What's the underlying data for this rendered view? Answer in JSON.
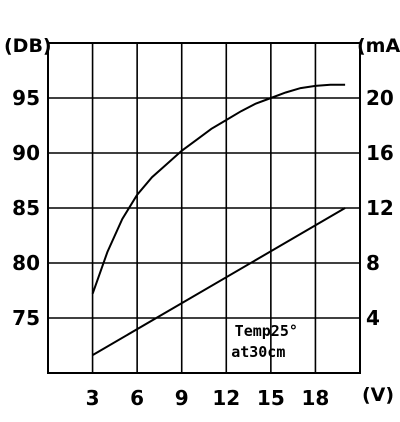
{
  "chart_data": {
    "type": "line",
    "x_unit": "(V)",
    "left_unit": "(DB)",
    "right_unit": "(mA)",
    "x_ticks": [
      "3",
      "6",
      "9",
      "12",
      "15",
      "18"
    ],
    "left_ticks": [
      "75",
      "80",
      "85",
      "90",
      "95"
    ],
    "right_ticks": [
      "4",
      "8",
      "12",
      "16",
      "20"
    ],
    "xlim": [
      0,
      21
    ],
    "left_ylim": [
      70,
      100
    ],
    "right_ylim": [
      0,
      24
    ],
    "annotation": [
      "Temp25°",
      "at30cm"
    ],
    "grid": true,
    "series": [
      {
        "axis": "left",
        "x": [
          3,
          4,
          5,
          6,
          7,
          8,
          9,
          10,
          11,
          12,
          13,
          14,
          15,
          16,
          17,
          18,
          19,
          20
        ],
        "values": [
          77.2,
          81,
          84,
          86.2,
          87.8,
          89,
          90.2,
          91.2,
          92.2,
          93,
          93.8,
          94.5,
          95,
          95.5,
          95.9,
          96.1,
          96.2,
          96.2
        ]
      },
      {
        "axis": "right",
        "x": [
          3,
          20
        ],
        "values": [
          1.3,
          12
        ]
      }
    ]
  }
}
